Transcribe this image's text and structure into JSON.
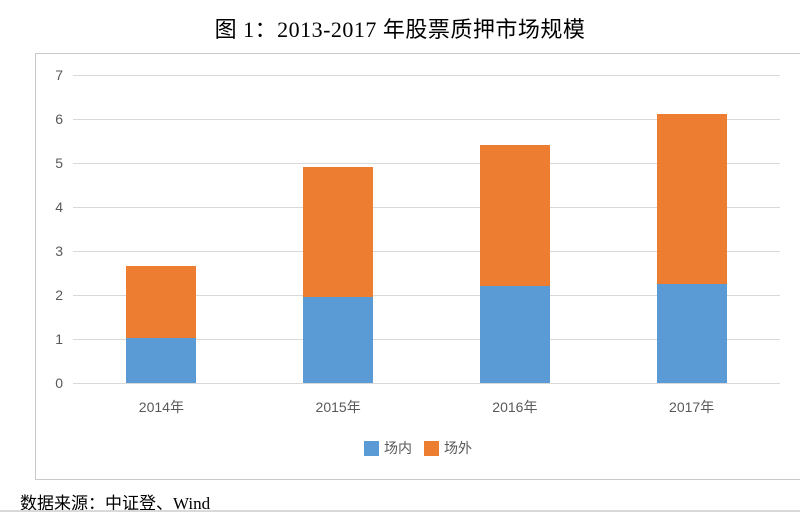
{
  "title": "图 1：2013-2017 年股票质押市场规模",
  "source": "数据来源：中证登、Wind",
  "colors": {
    "inner_blue": "#5B9BD5",
    "outer_orange": "#ED7D31",
    "gridline": "#D9D9D9",
    "frame_border": "#C9C9C9",
    "axis_text": "#595959",
    "title_text": "#000000"
  },
  "chart_data": {
    "type": "bar",
    "stacked": true,
    "title": "图 1：2013-2017 年股票质押市场规模",
    "categories": [
      "2014年",
      "2015年",
      "2016年",
      "2017年"
    ],
    "series": [
      {
        "name": "场内",
        "color": "#5B9BD5",
        "values": [
          1.03,
          1.95,
          2.2,
          2.26
        ]
      },
      {
        "name": "场外",
        "color": "#ED7D31",
        "values": [
          1.63,
          2.95,
          3.2,
          3.86
        ]
      }
    ],
    "totals": [
      2.66,
      4.9,
      5.4,
      6.12
    ],
    "xlabel": "",
    "ylabel": "",
    "ylim": [
      0,
      7
    ],
    "ytick_interval": 1,
    "yticks": [
      0,
      1,
      2,
      3,
      4,
      5,
      6,
      7
    ],
    "grid": true,
    "legend_position": "bottom"
  }
}
